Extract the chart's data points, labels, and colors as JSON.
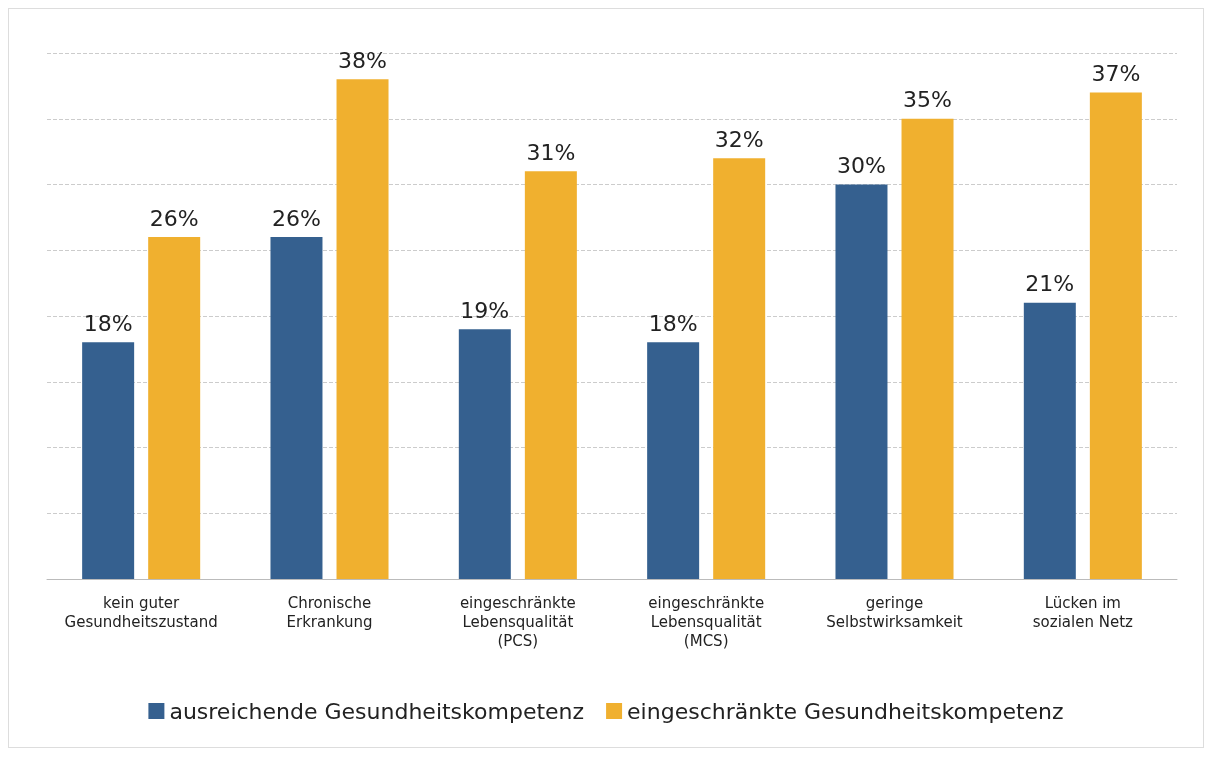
{
  "chart_data": {
    "type": "bar",
    "categories": [
      "kein guter\nGesundheitszustand",
      "Chronische\nErkrankung",
      "eingeschränkte\nLebensqualität\n(PCS)",
      "eingeschränkte\nLebensqualität\n(MCS)",
      "geringe\nSelbstwirksamkeit",
      "Lücken im\nsozialen Netz"
    ],
    "series": [
      {
        "name": "ausreichende Gesundheitskompetenz",
        "color": "#35608f",
        "values": [
          18,
          26,
          19,
          18,
          30,
          21
        ],
        "value_labels": [
          "18%",
          "26%",
          "19%",
          "18%",
          "30%",
          "21%"
        ]
      },
      {
        "name": "eingeschränkte Gesundheitskompetenz",
        "color": "#f0b02f",
        "values": [
          26,
          38,
          31,
          32,
          35,
          37
        ],
        "value_labels": [
          "26%",
          "38%",
          "31%",
          "32%",
          "35%",
          "37%"
        ]
      }
    ],
    "ylim": [
      0,
      40
    ],
    "yticks": [
      {
        "value": 0,
        "label": null
      },
      {
        "value": 5,
        "label": null
      },
      {
        "value": 10,
        "label": null
      },
      {
        "value": 15,
        "label": null
      },
      {
        "value": 20,
        "label": null
      },
      {
        "value": 25,
        "label": null
      },
      {
        "value": 30,
        "label": null
      },
      {
        "value": 35,
        "label": null
      },
      {
        "value": 40,
        "label": null
      }
    ],
    "tick_labels": "x",
    "grid": "y",
    "legend": "bottom"
  }
}
